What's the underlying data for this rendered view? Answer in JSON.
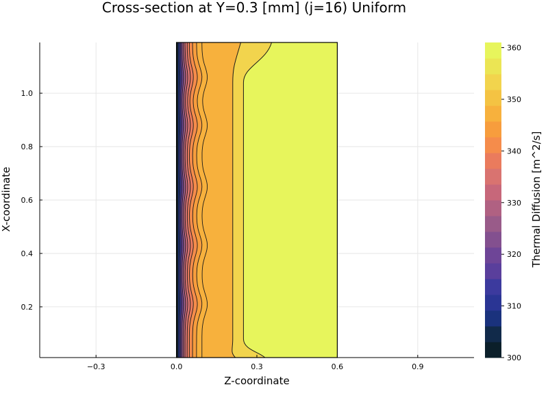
{
  "chart_data": {
    "type": "heatmap",
    "subtype": "filled-contour",
    "title": "Cross-section at Y=0.3 [mm] (j=16) Uniform",
    "xlabel": "Z-coordinate",
    "ylabel": "X-coordinate",
    "colorbar_label": "Thermal Diffusion [m^2/s]",
    "xlim": [
      -0.51,
      1.11
    ],
    "ylim": [
      0.01,
      1.19
    ],
    "x_ticks": [
      "-0.3",
      "0.0",
      "0.3",
      "0.6",
      "0.9"
    ],
    "x_tick_values": [
      -0.3,
      0.0,
      0.3,
      0.6,
      0.9
    ],
    "y_ticks": [
      "0.2",
      "0.4",
      "0.6",
      "0.8",
      "1.0"
    ],
    "y_tick_values": [
      0.2,
      0.4,
      0.6,
      0.8,
      1.0
    ],
    "grid": true,
    "domain_z": [
      0.0,
      0.6
    ],
    "domain_x": [
      0.01,
      1.19
    ],
    "colorbar": {
      "min": 300,
      "max": 361,
      "ticks": [
        "300",
        "310",
        "320",
        "330",
        "340",
        "350",
        "360"
      ],
      "tick_values": [
        300,
        310,
        320,
        330,
        340,
        350,
        360
      ],
      "colors": [
        "#0b1f2a",
        "#112a4a",
        "#1a327d",
        "#2a3594",
        "#3c3a9e",
        "#5a3f9c",
        "#6e4597",
        "#83508f",
        "#995b89",
        "#b06182",
        "#c7677a",
        "#d97370",
        "#ea7b5d",
        "#f58c4b",
        "#f79d3d",
        "#f7b13d",
        "#f4c343",
        "#f2d44d",
        "#ebe554",
        "#e7f55c"
      ]
    },
    "regions": [
      {
        "z_min": 0.3,
        "z_max": 0.6,
        "value": 358,
        "color": "#e7f55c"
      },
      {
        "z_min": 0.23,
        "z_max": 0.3,
        "value": 354,
        "color": "#f2d44d"
      },
      {
        "z_min": 0.08,
        "z_max": 0.23,
        "value": 351,
        "color": "#f7b13d"
      },
      {
        "z_min": 0.0,
        "z_max": 0.08,
        "value": "300-348",
        "color": "boundary gradient"
      }
    ]
  }
}
